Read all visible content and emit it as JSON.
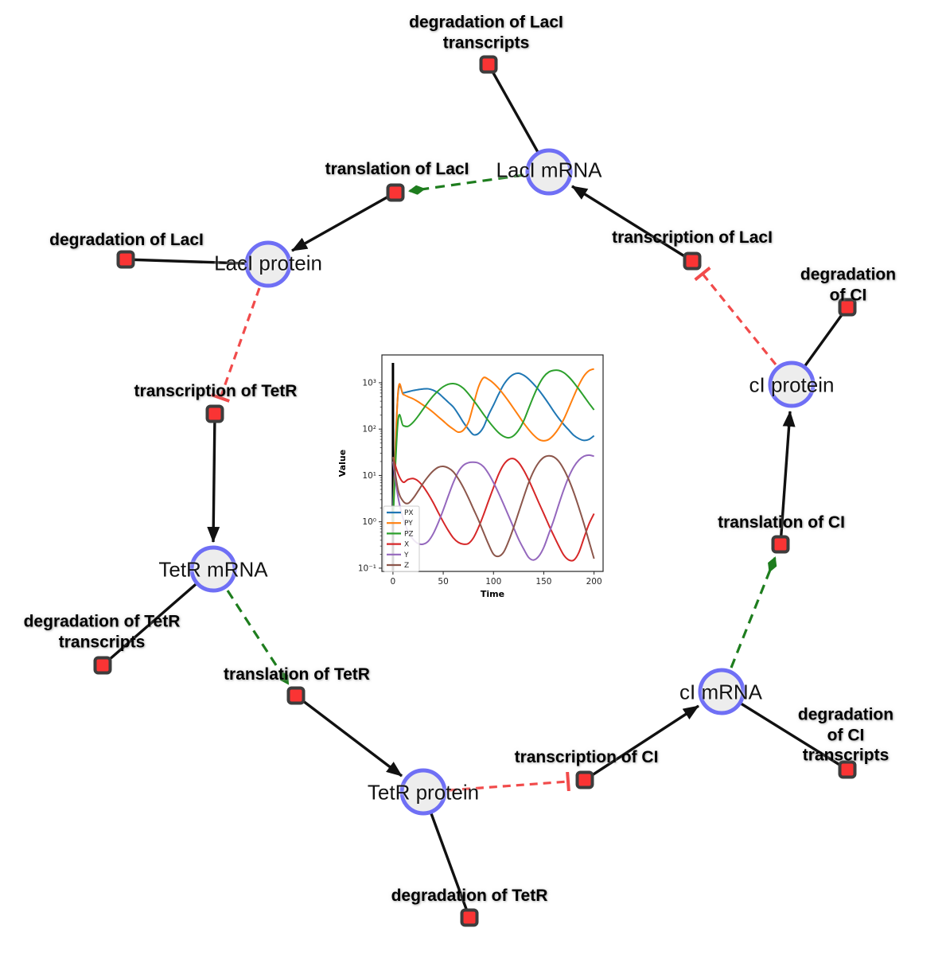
{
  "diagram": {
    "species": {
      "laci_mrna": {
        "label": "LacI mRNA"
      },
      "laci_protein": {
        "label": "LacI protein"
      },
      "ci_protein": {
        "label": "cI protein"
      },
      "tetr_mrna": {
        "label": "TetR mRNA"
      },
      "ci_mrna": {
        "label": "cI mRNA"
      },
      "tetr_protein": {
        "label": "TetR protein"
      }
    },
    "reactions": {
      "deg_laci_tx": {
        "label": "degradation of LacI\ntranscripts"
      },
      "transl_laci": {
        "label": "translation of LacI"
      },
      "txn_laci": {
        "label": "transcription of LacI"
      },
      "deg_laci": {
        "label": "degradation of LacI"
      },
      "deg_ci": {
        "label": "degradation of CI"
      },
      "txn_tetr": {
        "label": "transcription of TetR"
      },
      "transl_ci": {
        "label": "translation of CI"
      },
      "deg_tetr_tx": {
        "label": "degradation of TetR\ntranscripts"
      },
      "transl_tetr": {
        "label": "translation of TetR"
      },
      "deg_ci_tx": {
        "label": "degradation of CI\ntranscripts"
      },
      "txn_ci": {
        "label": "transcription of CI"
      },
      "deg_tetr": {
        "label": "degradation of TetR"
      }
    },
    "colors": {
      "node_border": "#6f6ff5",
      "node_fill": "#ededed",
      "reaction_fill": "#fa3434",
      "reaction_border": "#3d3d3d",
      "activation": "#1e7d1e",
      "inhibition": "#f14b4b",
      "edge": "#111111"
    }
  },
  "chart_data": {
    "type": "line",
    "title": "",
    "xlabel": "Time",
    "ylabel": "Value",
    "xlim": [
      -11,
      209
    ],
    "ylog": true,
    "ylim_log": [
      -1.07,
      3.6
    ],
    "xticks": [
      0,
      50,
      100,
      150,
      200
    ],
    "ytick_exponents": [
      -1,
      0,
      1,
      2,
      3
    ],
    "ytick_labels": [
      "10⁻¹",
      "10⁰",
      "10¹",
      "10²",
      "10³"
    ],
    "legend_position": "lower left",
    "grid": false,
    "vline_x": 0,
    "x": [
      0,
      5,
      10,
      15,
      20,
      25,
      30,
      35,
      40,
      45,
      50,
      55,
      60,
      65,
      70,
      75,
      80,
      85,
      90,
      95,
      100,
      105,
      110,
      115,
      120,
      125,
      130,
      135,
      140,
      145,
      150,
      155,
      160,
      165,
      170,
      175,
      180,
      185,
      190,
      195,
      200
    ],
    "series": [
      {
        "name": "PX",
        "color": "#1f77b4",
        "values": [
          2,
          560,
          600,
          640,
          680,
          710,
          735,
          740,
          690,
          600,
          480,
          380,
          300,
          210,
          140,
          100,
          76,
          80,
          110,
          200,
          330,
          560,
          900,
          1250,
          1520,
          1600,
          1450,
          1200,
          930,
          700,
          500,
          350,
          240,
          170,
          125,
          95,
          73,
          62,
          57,
          60,
          72
        ]
      },
      {
        "name": "PY",
        "color": "#ff7f0e",
        "values": [
          1,
          600,
          560,
          500,
          450,
          390,
          330,
          280,
          230,
          185,
          150,
          120,
          100,
          86,
          95,
          140,
          330,
          800,
          1280,
          1180,
          980,
          760,
          560,
          400,
          280,
          195,
          135,
          98,
          74,
          60,
          56,
          60,
          75,
          105,
          165,
          290,
          520,
          900,
          1400,
          1820,
          1990
        ]
      },
      {
        "name": "PZ",
        "color": "#2ca02c",
        "values": [
          1,
          150,
          120,
          115,
          140,
          190,
          270,
          380,
          520,
          670,
          820,
          930,
          960,
          900,
          760,
          580,
          420,
          300,
          210,
          150,
          110,
          84,
          70,
          65,
          72,
          95,
          150,
          280,
          520,
          900,
          1350,
          1700,
          1850,
          1840,
          1650,
          1330,
          1000,
          720,
          510,
          360,
          260
        ]
      },
      {
        "name": "X",
        "color": "#d62728",
        "values": [
          25,
          11,
          7.2,
          8.2,
          8.6,
          7.6,
          5.8,
          4.0,
          2.6,
          1.6,
          1.0,
          0.65,
          0.45,
          0.36,
          0.33,
          0.34,
          0.45,
          0.75,
          1.4,
          2.8,
          5.5,
          10.5,
          17,
          22,
          23,
          19,
          13,
          8,
          4.6,
          2.6,
          1.5,
          0.85,
          0.5,
          0.3,
          0.19,
          0.15,
          0.15,
          0.22,
          0.45,
          0.9,
          1.5
        ]
      },
      {
        "name": "Y",
        "color": "#9467bd",
        "values": [
          20,
          3.5,
          1.2,
          0.62,
          0.42,
          0.34,
          0.33,
          0.38,
          0.55,
          0.95,
          1.8,
          3.6,
          7,
          12,
          16.5,
          18.8,
          19.3,
          18.5,
          15.5,
          11,
          7,
          4.2,
          2.4,
          1.35,
          0.75,
          0.42,
          0.26,
          0.17,
          0.15,
          0.18,
          0.28,
          0.55,
          1.1,
          2.4,
          5,
          9.5,
          15.5,
          21.5,
          26,
          27.5,
          26
        ]
      },
      {
        "name": "Z",
        "color": "#8c564b",
        "values": [
          25,
          5,
          2.8,
          2.5,
          3.2,
          4.6,
          6.8,
          9.5,
          12.5,
          15,
          15.7,
          14.5,
          12,
          8.5,
          5.5,
          3.3,
          1.9,
          1.1,
          0.6,
          0.33,
          0.2,
          0.18,
          0.22,
          0.38,
          0.75,
          1.6,
          3.4,
          7,
          12.5,
          19,
          24.5,
          26.5,
          25,
          20,
          13.5,
          8,
          4.2,
          2.0,
          0.9,
          0.38,
          0.16
        ]
      }
    ]
  }
}
